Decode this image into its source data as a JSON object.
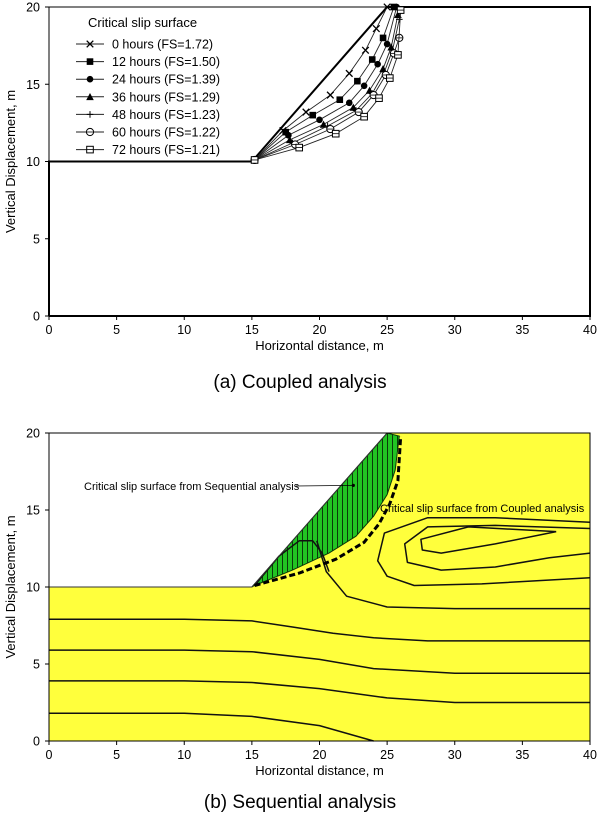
{
  "chart_data": [
    {
      "type": "line",
      "panel": "a",
      "caption": "(a)  Coupled analysis",
      "xlabel": "Horizontal distance, m",
      "ylabel": "Vertical Displacement, m",
      "xlim": [
        0,
        40
      ],
      "ylim": [
        0,
        20
      ],
      "xticks": [
        0,
        5,
        10,
        15,
        20,
        25,
        30,
        35,
        40
      ],
      "yticks": [
        0,
        5,
        10,
        15,
        20
      ],
      "grid": false,
      "legend_title": "Critical slip surface",
      "legend_position": "top-left",
      "slope_profile": [
        [
          0,
          0
        ],
        [
          0,
          10
        ],
        [
          15,
          10
        ],
        [
          25,
          20
        ],
        [
          40,
          20
        ],
        [
          40,
          0
        ],
        [
          0,
          0
        ]
      ],
      "series": [
        {
          "name": "0 hours (FS=1.72)",
          "marker": "x",
          "x": [
            15.2,
            17.3,
            19.0,
            20.8,
            22.2,
            23.4,
            24.2,
            25.0
          ],
          "y": [
            10.1,
            12.0,
            13.2,
            14.3,
            15.7,
            17.2,
            18.6,
            20.0
          ]
        },
        {
          "name": "12 hours (FS=1.50)",
          "marker": "square-filled",
          "x": [
            15.2,
            17.5,
            19.5,
            21.5,
            22.8,
            23.9,
            24.7,
            25.5
          ],
          "y": [
            10.1,
            11.9,
            13.0,
            14.0,
            15.2,
            16.6,
            18.0,
            20.0
          ]
        },
        {
          "name": "24 hours (FS=1.39)",
          "marker": "circle-filled",
          "x": [
            15.2,
            17.7,
            20.0,
            22.2,
            23.3,
            24.3,
            25.0,
            25.7
          ],
          "y": [
            10.1,
            11.7,
            12.7,
            13.8,
            14.9,
            16.3,
            17.6,
            20.0
          ]
        },
        {
          "name": "36 hours (FS=1.29)",
          "marker": "triangle-filled",
          "x": [
            15.2,
            17.8,
            20.3,
            22.5,
            23.7,
            24.7,
            25.3,
            25.8
          ],
          "y": [
            10.1,
            11.4,
            12.4,
            13.5,
            14.6,
            16.0,
            17.4,
            19.5
          ]
        },
        {
          "name": "48 hours (FS=1.23)",
          "marker": "plus",
          "x": [
            15.2,
            18.0,
            20.6,
            22.7,
            23.9,
            24.8,
            25.4,
            25.9
          ],
          "y": [
            10.1,
            11.2,
            12.3,
            13.3,
            14.4,
            15.8,
            17.2,
            19.2
          ]
        },
        {
          "name": "60 hours (FS=1.22)",
          "marker": "circle-open",
          "x": [
            15.2,
            18.2,
            20.8,
            22.9,
            24.0,
            24.9,
            25.5,
            25.9
          ],
          "y": [
            10.1,
            11.1,
            12.1,
            13.2,
            14.3,
            15.6,
            17.0,
            18.0
          ]
        },
        {
          "name": "72 hours (FS=1.21)",
          "marker": "square-open",
          "x": [
            15.2,
            18.5,
            21.2,
            23.3,
            24.4,
            25.2,
            25.8,
            26.0
          ],
          "y": [
            10.1,
            10.9,
            11.8,
            12.9,
            14.1,
            15.4,
            16.9,
            19.8
          ]
        }
      ]
    },
    {
      "type": "area",
      "panel": "b",
      "caption": "(b)  Sequential analysis",
      "xlabel": "Horizontal distance, m",
      "ylabel": "Vertical Displacement, m",
      "xlim": [
        0,
        40
      ],
      "ylim": [
        0,
        20
      ],
      "xticks": [
        0,
        5,
        10,
        15,
        20,
        25,
        30,
        35,
        40
      ],
      "yticks": [
        0,
        5,
        10,
        15,
        20
      ],
      "grid": false,
      "domain_color": "#ffff3c",
      "slip_zone_color": "#22c422",
      "domain_profile": [
        [
          0,
          0
        ],
        [
          0,
          10
        ],
        [
          15,
          10
        ],
        [
          25,
          20
        ],
        [
          40,
          20
        ],
        [
          40,
          0
        ],
        [
          0,
          0
        ]
      ],
      "annotations": [
        {
          "text": "Critical slip surface from Sequential analysis",
          "x": 22.5,
          "y": 16.6
        },
        {
          "text": "Critical slip surface from Coupled analysis",
          "x": 26.0,
          "y": 15.3
        }
      ],
      "slip_surface_sequential": {
        "x": [
          15.2,
          18.0,
          20.7,
          22.7,
          24.0,
          25.0,
          25.6,
          25.9
        ],
        "y": [
          10.1,
          11.1,
          12.2,
          13.3,
          14.6,
          16.0,
          17.6,
          19.8
        ]
      },
      "slip_surface_coupled": {
        "x": [
          15.2,
          18.5,
          21.2,
          23.3,
          24.4,
          25.2,
          25.8,
          26.0
        ],
        "y": [
          10.1,
          10.9,
          11.8,
          12.9,
          14.1,
          15.4,
          16.9,
          19.8
        ]
      },
      "contours": [
        {
          "x": [
            0,
            10,
            15,
            20,
            24
          ],
          "y": [
            1.8,
            1.8,
            1.6,
            1.0,
            0.0
          ]
        },
        {
          "x": [
            0,
            10,
            15,
            20,
            25,
            30,
            40
          ],
          "y": [
            3.9,
            3.9,
            3.8,
            3.4,
            2.8,
            2.5,
            2.5
          ]
        },
        {
          "x": [
            0,
            10,
            15,
            20,
            24,
            30,
            40
          ],
          "y": [
            5.9,
            5.9,
            5.8,
            5.3,
            4.7,
            4.4,
            4.4
          ]
        },
        {
          "x": [
            0,
            10,
            15,
            18,
            21,
            24,
            28,
            33,
            40
          ],
          "y": [
            7.9,
            7.9,
            7.8,
            7.4,
            7.0,
            6.7,
            6.5,
            6.5,
            6.5
          ]
        },
        {
          "x": [
            19.8,
            20.5,
            22.0,
            25.0,
            30.0,
            40.0
          ],
          "y": [
            13.0,
            11.0,
            9.4,
            8.7,
            8.6,
            8.6
          ]
        },
        {
          "x": [
            40.0,
            33.0,
            28.0,
            24.8,
            24.3,
            25.0,
            27.0,
            32.0,
            40.0
          ],
          "y": [
            14.2,
            14.5,
            14.5,
            13.5,
            11.7,
            10.7,
            10.1,
            10.2,
            10.6
          ]
        },
        {
          "x": [
            40.0,
            33.0,
            28.0,
            26.3,
            26.5,
            29.0,
            33.0,
            37.0,
            40.0
          ],
          "y": [
            13.8,
            14.0,
            13.9,
            12.8,
            11.6,
            11.1,
            11.3,
            11.9,
            12.2
          ]
        },
        {
          "x": [
            37.5,
            31.0,
            27.5,
            27.6,
            29.0,
            33.0,
            37.5
          ],
          "y": [
            13.6,
            13.9,
            13.1,
            12.4,
            12.2,
            12.8,
            13.6
          ]
        },
        {
          "x": [
            15.2,
            17.0,
            18.5,
            19.5,
            20.2,
            20.7
          ],
          "y": [
            10.1,
            12.0,
            13.0,
            13.0,
            12.2,
            11.0
          ]
        }
      ]
    }
  ]
}
